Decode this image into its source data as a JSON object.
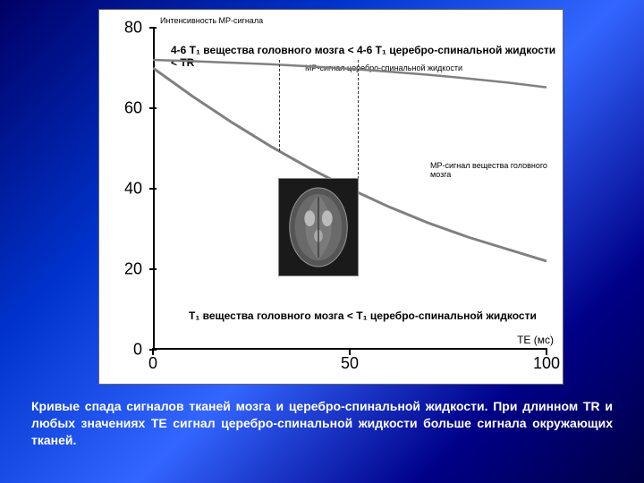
{
  "chart": {
    "type": "line",
    "background_color": "#ffffff",
    "axis_color": "#000000",
    "y_axis_title": "Интенсивность\nМР-сигнала",
    "x_axis_title": "TE (мс)",
    "ylim": [
      0,
      80
    ],
    "xlim": [
      0,
      100
    ],
    "yticks": [
      0,
      20,
      40,
      60,
      80
    ],
    "xticks": [
      0,
      50,
      100
    ],
    "tick_fontsize": 18,
    "formula_top": "4-6 T₁ вещества головного мозга < 4-6 T₁ церебро-спинальной жидкости < TR",
    "formula_bottom": "T₁ вещества головного мозга < T₁ церебро-спинальной жидкости",
    "series": [
      {
        "name": "csf",
        "label": "МР-сигнал церебро-спинальной жидкости",
        "color": "#808080",
        "line_width": 2.5,
        "points": [
          [
            0,
            72
          ],
          [
            10,
            71.7
          ],
          [
            20,
            71.3
          ],
          [
            30,
            70.9
          ],
          [
            40,
            70.4
          ],
          [
            50,
            69.8
          ],
          [
            60,
            69.1
          ],
          [
            70,
            68.3
          ],
          [
            80,
            67.4
          ],
          [
            90,
            66.4
          ],
          [
            100,
            65.2
          ]
        ]
      },
      {
        "name": "brain",
        "label": "МР-сигнал вещества\nголовного мозга",
        "color": "#808080",
        "line_width": 3,
        "points": [
          [
            0,
            70
          ],
          [
            10,
            63
          ],
          [
            20,
            56.5
          ],
          [
            30,
            50.5
          ],
          [
            40,
            45
          ],
          [
            50,
            40
          ],
          [
            60,
            35.5
          ],
          [
            70,
            31.5
          ],
          [
            80,
            28
          ],
          [
            90,
            25
          ],
          [
            100,
            22
          ]
        ]
      }
    ],
    "dashed_markers_x": [
      32,
      52
    ],
    "mri_inset": {
      "background": "#1a1a1a",
      "tissue_color": "#888888",
      "highlight_color": "#cccccc"
    }
  },
  "caption": "Кривые спада сигналов тканей мозга и церебро-спинальной жидкости. При длинном TR и любых значениях TE сигнал церебро-спинальной жидкости больше сигнала окружающих тканей.",
  "slide_bg_gradient": [
    "#000066",
    "#0033cc",
    "#3366ff",
    "#000088",
    "#000044"
  ]
}
